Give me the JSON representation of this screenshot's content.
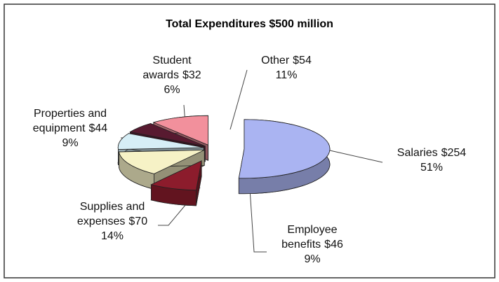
{
  "chart_data": {
    "type": "pie",
    "title": "Total Expenditures $500 million",
    "categories": [
      "Salaries",
      "Employee benefits",
      "Supplies and expenses",
      "Properties and equipment",
      "Student awards",
      "Other"
    ],
    "values": [
      51,
      9,
      14,
      9,
      6,
      11
    ],
    "value_labels": [
      "51%",
      "9%",
      "14%",
      "9%",
      "6%",
      "11%"
    ],
    "amounts": [
      254,
      46,
      70,
      44,
      32,
      54
    ],
    "amount_labels": [
      "$254",
      "$46",
      "$70",
      "$44",
      "$32",
      "$54"
    ],
    "colors": [
      "#aab4f2",
      "#8c1c2c",
      "#f6f2c6",
      "#d6eef6",
      "#581a30",
      "#f2909c"
    ]
  }
}
